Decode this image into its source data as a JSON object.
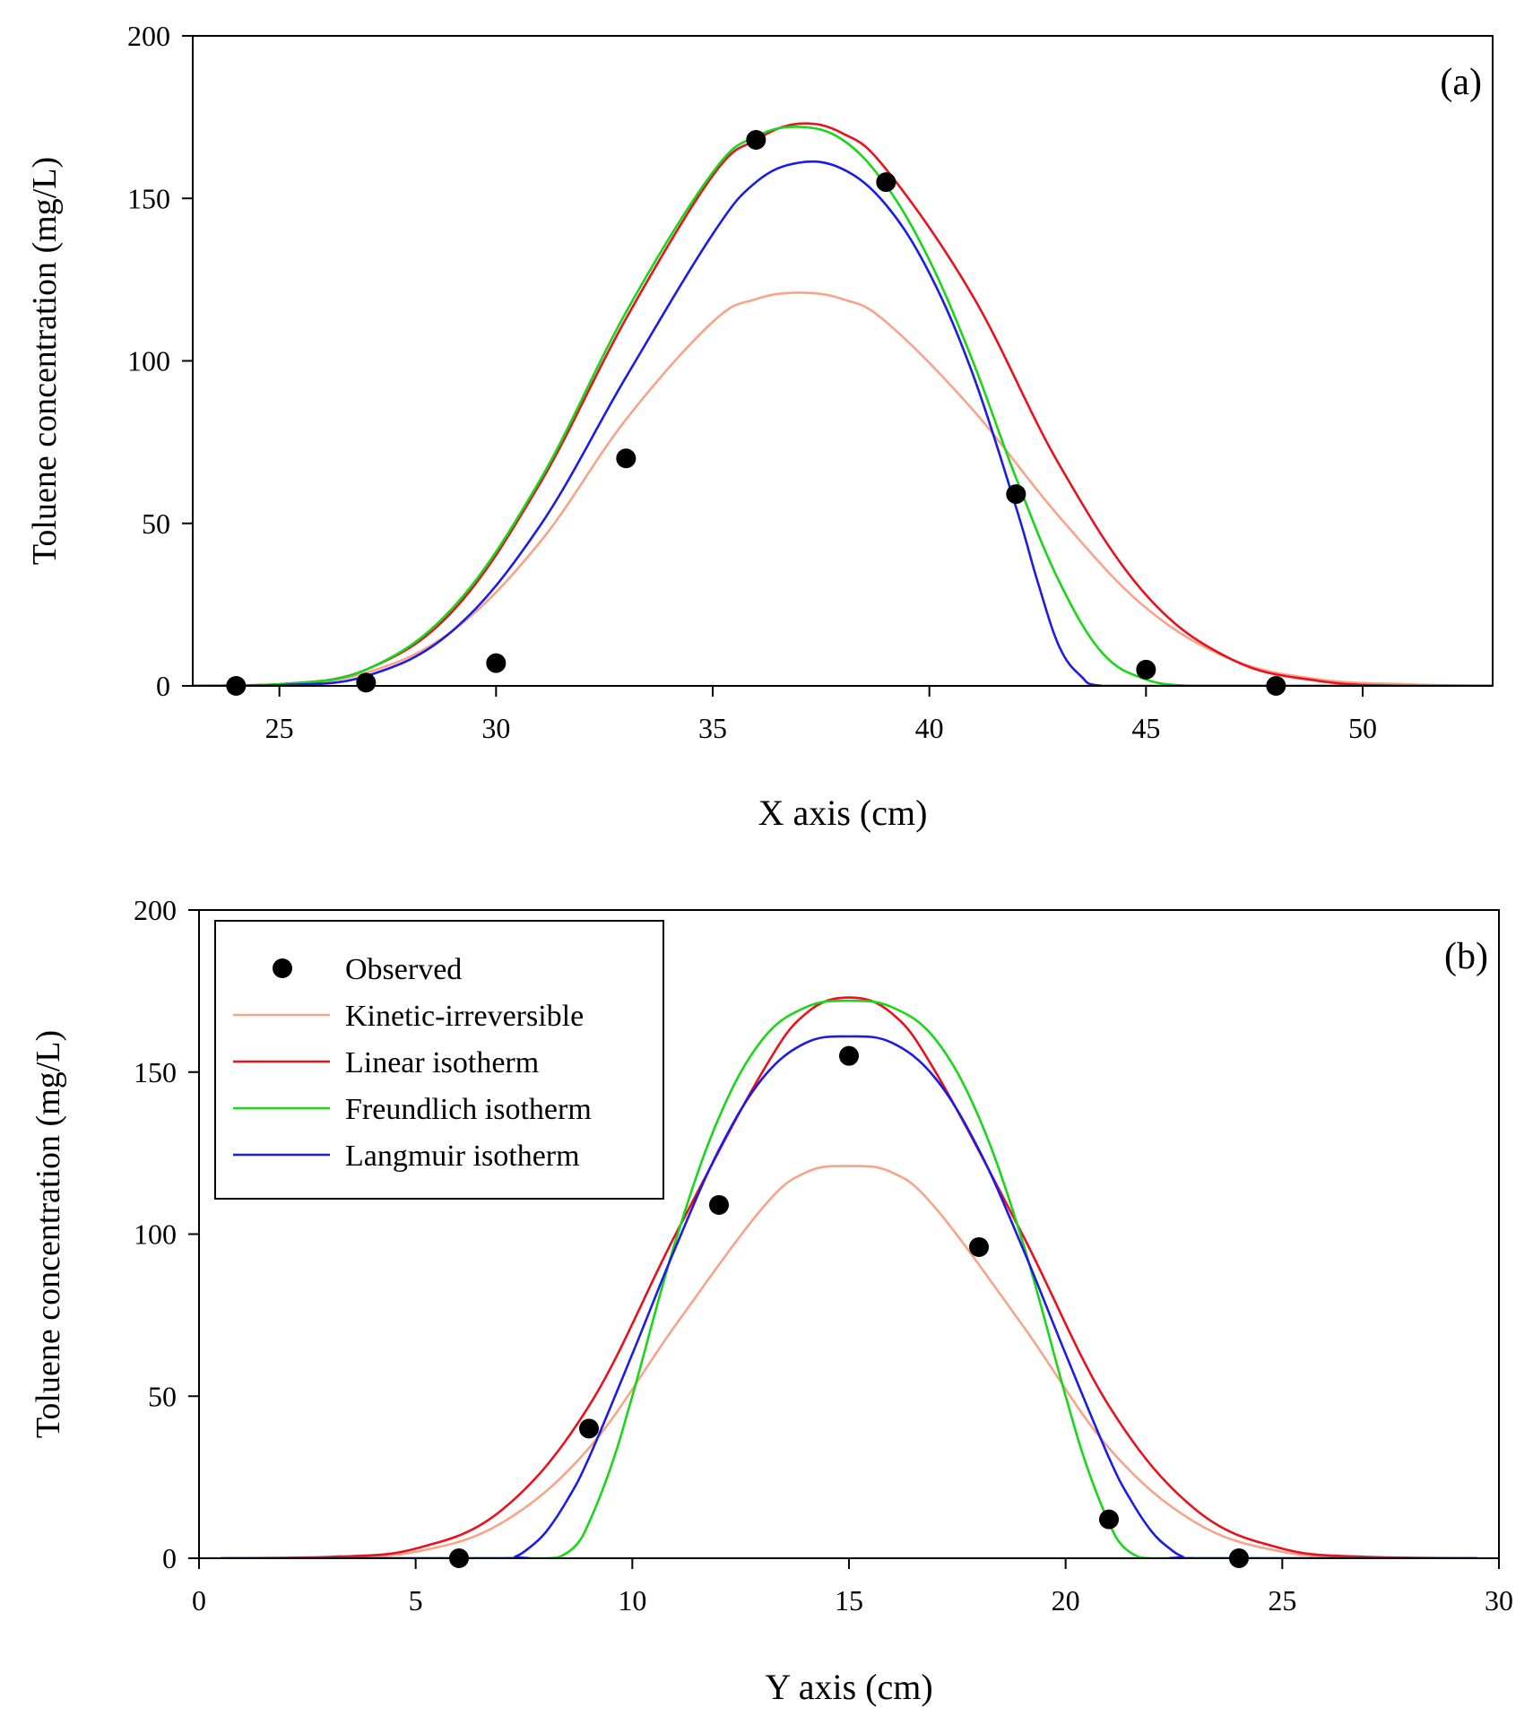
{
  "chart_data": [
    {
      "type": "line",
      "panel_label": "(a)",
      "xlabel": "X axis (cm)",
      "ylabel": "Toluene concentration (mg/L)",
      "xlim": [
        23,
        53
      ],
      "ylim": [
        0,
        200
      ],
      "xticks": [
        25,
        30,
        35,
        40,
        45,
        50
      ],
      "yticks": [
        0,
        50,
        100,
        150,
        200
      ],
      "grid": false,
      "legend": "none",
      "observed": {
        "name": "Observed",
        "x": [
          24,
          27,
          30,
          33,
          36,
          39,
          42,
          45,
          48
        ],
        "y": [
          0,
          1,
          7,
          70,
          168,
          155,
          59,
          5,
          0
        ]
      },
      "series": [
        {
          "name": "Kinetic-irreversible",
          "color": "#f7a48a",
          "x": [
            23,
            25,
            27,
            29,
            31,
            33,
            35,
            36,
            37,
            38,
            39,
            41,
            43,
            45,
            47,
            49,
            51,
            53
          ],
          "y": [
            0,
            0.5,
            4,
            17,
            44,
            82,
            112,
            119,
            121,
            119,
            112,
            85,
            52,
            24,
            8,
            2,
            0.5,
            0
          ]
        },
        {
          "name": "Linear isotherm",
          "color": "#e8111c",
          "x": [
            23,
            25,
            27,
            29,
            31,
            33,
            35,
            36,
            37,
            38,
            39,
            41,
            43,
            45,
            47,
            49,
            51,
            53
          ],
          "y": [
            0,
            0.5,
            5,
            23,
            62,
            113,
            157,
            168,
            173,
            170,
            159,
            120,
            68,
            28,
            8,
            1.5,
            0,
            0
          ]
        },
        {
          "name": "Freundlich isotherm",
          "color": "#19d619",
          "x": [
            23,
            25,
            27,
            29,
            31,
            33,
            35,
            36,
            37,
            38,
            39,
            40,
            41,
            42,
            43,
            44,
            45,
            46,
            47,
            53
          ],
          "y": [
            0,
            0.5,
            5,
            24,
            63,
            115,
            158,
            169,
            172,
            168,
            154,
            131,
            100,
            64,
            32,
            10,
            2,
            0,
            0,
            0
          ]
        },
        {
          "name": "Langmuir isotherm",
          "color": "#1c1ce6",
          "x": [
            23,
            25,
            27,
            29,
            31,
            33,
            35,
            36,
            37,
            38,
            39,
            40,
            41,
            42,
            42.5,
            43,
            43.5,
            44,
            46,
            53
          ],
          "y": [
            0,
            0.2,
            3,
            17,
            49,
            95,
            139,
            155,
            161,
            159,
            148,
            127,
            96,
            55,
            32,
            12,
            3,
            0,
            0,
            0
          ]
        }
      ]
    },
    {
      "type": "line",
      "panel_label": "(b)",
      "xlabel": "Y axis (cm)",
      "ylabel": "Toluene concentration (mg/L)",
      "xlim": [
        0,
        30
      ],
      "ylim": [
        0,
        200
      ],
      "xticks": [
        0,
        5,
        10,
        15,
        20,
        25,
        30
      ],
      "yticks": [
        0,
        50,
        100,
        150,
        200
      ],
      "grid": false,
      "legend": "top-left",
      "observed": {
        "name": "Observed",
        "x": [
          6,
          9,
          12,
          15,
          18,
          21,
          24
        ],
        "y": [
          0,
          40,
          109,
          155,
          96,
          12,
          0
        ]
      },
      "series": [
        {
          "name": "Kinetic-irreversible",
          "color": "#f7a48a",
          "x": [
            0.5,
            3,
            5,
            7,
            9,
            11,
            13,
            14,
            15,
            16,
            17,
            19,
            21,
            23,
            25,
            27,
            29.5
          ],
          "y": [
            0,
            0.3,
            2,
            11,
            34,
            72,
            108,
            119,
            121,
            119,
            108,
            72,
            34,
            11,
            2,
            0.3,
            0
          ]
        },
        {
          "name": "Linear isotherm",
          "color": "#e8111c",
          "x": [
            0.5,
            3,
            5,
            7,
            9,
            11,
            13,
            14,
            15,
            16,
            17,
            19,
            21,
            23,
            25,
            27,
            29.5
          ],
          "y": [
            0,
            0.4,
            3,
            15,
            47,
            100,
            150,
            168,
            173,
            168,
            150,
            100,
            47,
            15,
            3,
            0.4,
            0
          ]
        },
        {
          "name": "Freundlich isotherm",
          "color": "#19d619",
          "x": [
            0.5,
            7,
            8,
            8.3,
            8.7,
            9,
            9.5,
            10,
            11,
            12,
            13,
            14,
            15,
            16,
            17,
            18,
            19,
            20,
            20.5,
            21,
            21.3,
            21.7,
            22,
            23,
            29.5
          ],
          "y": [
            0,
            0,
            0,
            0.3,
            4,
            11,
            28,
            50,
            98,
            136,
            160,
            170,
            172,
            170,
            160,
            136,
            98,
            50,
            28,
            11,
            4,
            0.3,
            0,
            0,
            0
          ]
        },
        {
          "name": "Langmuir isotherm",
          "color": "#1c1ce6",
          "x": [
            0.5,
            7,
            7.3,
            7.6,
            8,
            8.5,
            9,
            10,
            11,
            12,
            13,
            14,
            15,
            16,
            17,
            18,
            19,
            20,
            21,
            21.5,
            22,
            22.4,
            22.7,
            23,
            29.5
          ],
          "y": [
            0,
            0,
            0.5,
            3,
            8,
            18,
            31,
            63,
            96,
            126,
            148,
            159,
            161,
            159,
            148,
            126,
            96,
            63,
            31,
            18,
            8,
            3,
            0.5,
            0,
            0
          ]
        }
      ]
    }
  ]
}
